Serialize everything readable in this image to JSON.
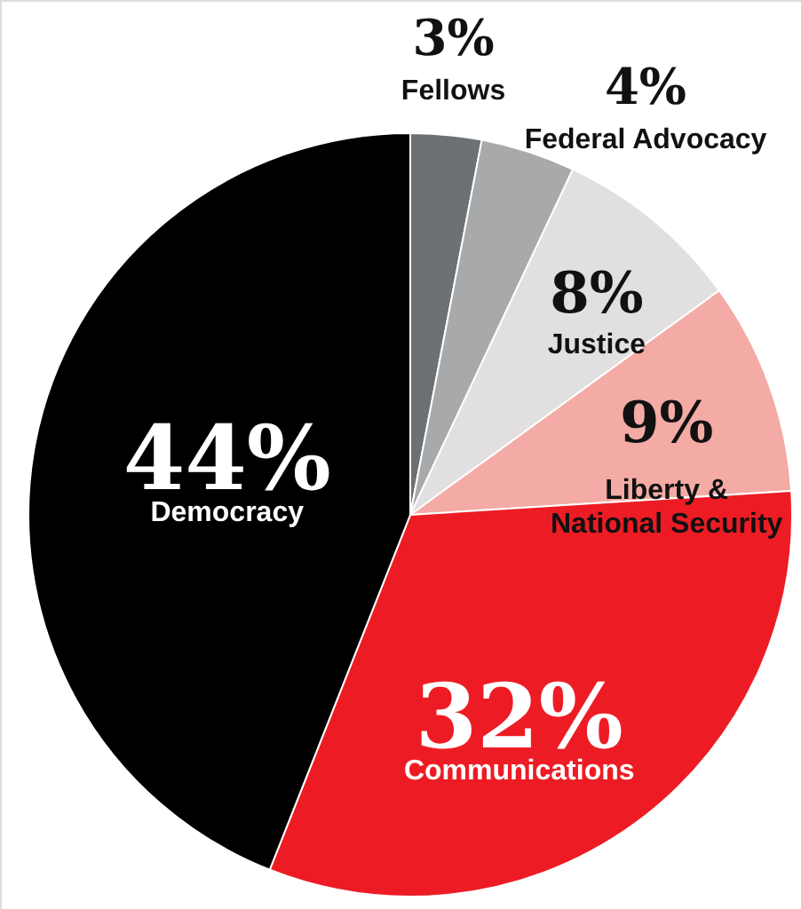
{
  "chart_data": {
    "type": "pie",
    "categories": [
      "Fellows",
      "Federal Advocacy",
      "Justice",
      "Liberty & National Security",
      "Communications",
      "Democracy"
    ],
    "values": [
      3,
      4,
      8,
      9,
      32,
      44
    ],
    "colors": [
      "#6d7173",
      "#a7a9ab",
      "#e1dfdf",
      "#f4aba5",
      "#ed1c24",
      "#000000"
    ],
    "value_labels": [
      "3%",
      "4%",
      "8%",
      "9%",
      "32%",
      "44%"
    ]
  }
}
